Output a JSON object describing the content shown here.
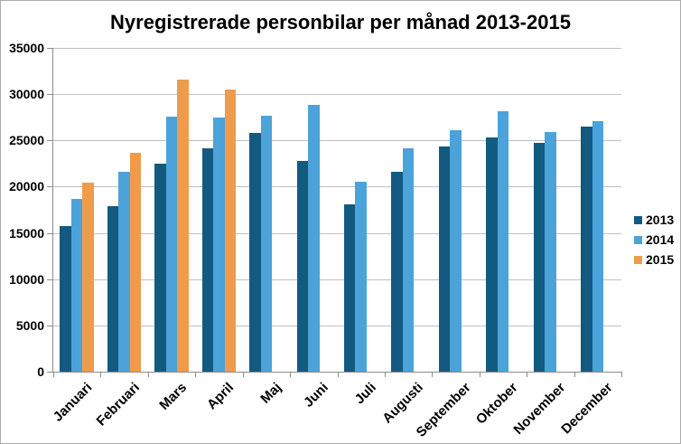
{
  "chart_data": {
    "type": "bar",
    "title": "Nyregistrerade personbilar per månad 2013-2015",
    "xlabel": "",
    "ylabel": "",
    "categories": [
      "Januari",
      "Februari",
      "Mars",
      "April",
      "Maj",
      "Juni",
      "Juli",
      "Augusti",
      "September",
      "Oktober",
      "November",
      "December"
    ],
    "series": [
      {
        "name": "2013",
        "color": "#135a80",
        "values": [
          15700,
          17900,
          22500,
          24200,
          25800,
          22800,
          18100,
          21600,
          24300,
          25300,
          24700,
          26500
        ]
      },
      {
        "name": "2014",
        "color": "#4ba3d9",
        "values": [
          18700,
          21600,
          27600,
          27500,
          27700,
          28800,
          20500,
          24200,
          26100,
          28200,
          25900,
          27100
        ]
      },
      {
        "name": "2015",
        "color": "#f09b4b",
        "values": [
          20400,
          23700,
          31600,
          30500,
          null,
          null,
          null,
          null,
          null,
          null,
          null,
          null
        ]
      }
    ],
    "ylim": [
      0,
      35000
    ],
    "ytick_step": 5000,
    "ytick_labels": [
      "0",
      "5000",
      "10000",
      "15000",
      "20000",
      "25000",
      "30000",
      "35000"
    ],
    "grid": true,
    "legend_position": "right",
    "colors": {
      "background": "#ffffff",
      "border": "#ababab",
      "gridline": "#c0c0c0",
      "axis": "#8c8c8c",
      "text": "#000000"
    }
  }
}
